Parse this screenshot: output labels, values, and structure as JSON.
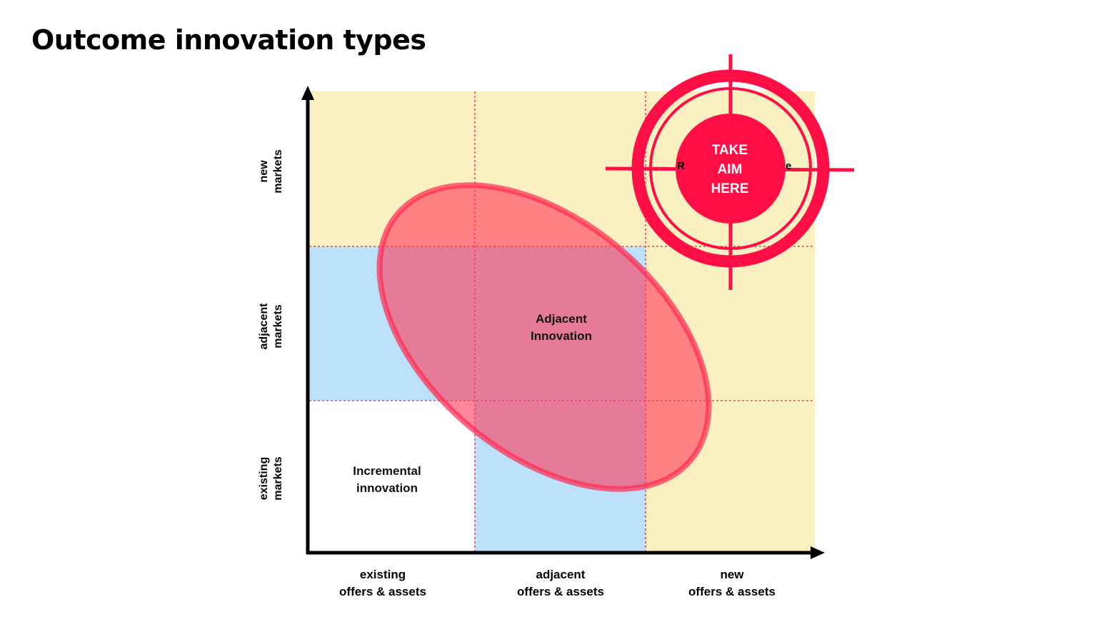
{
  "title": "Outcome innovation types",
  "y_axis_labels": [
    {
      "line1": "new",
      "line2": "markets"
    },
    {
      "line1": "adjacent",
      "line2": "markets"
    },
    {
      "line1": "existing",
      "line2": "markets"
    }
  ],
  "x_axis_labels": [
    {
      "line1": "existing",
      "line2": "offers & assets"
    },
    {
      "line1": "adjacent",
      "line2": "offers & assets"
    },
    {
      "line1": "new",
      "line2": "offers & assets"
    }
  ],
  "cells": {
    "adjacent_innovation": {
      "line1": "Adjacent",
      "line2": "Innovation"
    },
    "incremental_innovation": {
      "line1": "Incremental",
      "line2": "innovation"
    },
    "partial_label_left": "R",
    "partial_label_right": "e"
  },
  "target": {
    "line1": "TAKE",
    "line2": "AIM",
    "line3": "HERE"
  },
  "colors": {
    "yellow_zone": "#faf0c1",
    "blue_zone": "#bde0fb",
    "ellipse": "#ff3c5c",
    "target": "#ff0f45",
    "grid_dash": "#e0254e"
  }
}
